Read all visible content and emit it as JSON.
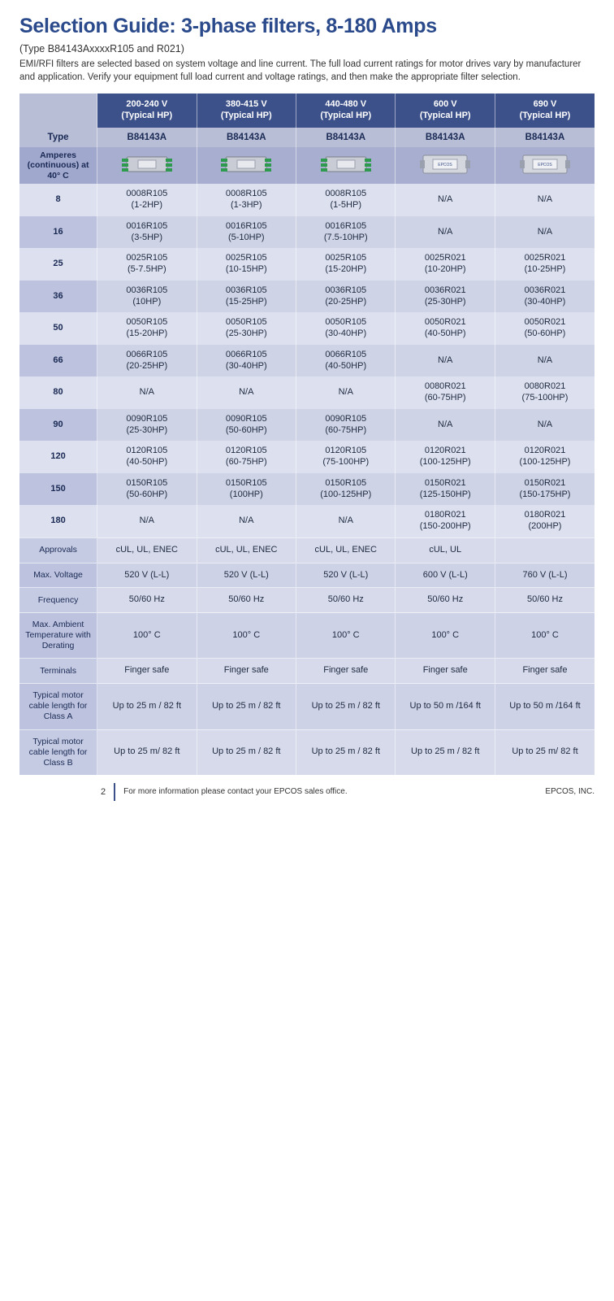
{
  "title": "Selection Guide: 3-phase filters, 8-180 Amps",
  "subtitle": "(Type B84143AxxxxR105 and R021)",
  "intro": "EMI/RFI filters are selected based on system voltage and line current.  The full load current ratings for motor drives vary by manufacturer and application. Verify your equipment full load current  and voltage ratings, and then make the appropriate filter selection.",
  "columns": [
    {
      "volt": "200-240 V",
      "hp": "(Typical HP)",
      "type": "B84143A",
      "icon": "green"
    },
    {
      "volt": "380-415 V",
      "hp": "(Typical HP)",
      "type": "B84143A",
      "icon": "green"
    },
    {
      "volt": "440-480 V",
      "hp": "(Typical HP)",
      "type": "B84143A",
      "icon": "green"
    },
    {
      "volt": "600 V",
      "hp": "(Typical HP)",
      "type": "B84143A",
      "icon": "grey"
    },
    {
      "volt": "690 V",
      "hp": "(Typical HP)",
      "type": "B84143A",
      "icon": "grey"
    }
  ],
  "row_header_type": "Type",
  "row_header_amps": "Amperes (continuous) at 40° C",
  "amp_rows": [
    {
      "a": "8",
      "c": [
        "0008R105\n(1-2HP)",
        "0008R105\n(1-3HP)",
        "0008R105\n(1-5HP)",
        "N/A",
        "N/A"
      ]
    },
    {
      "a": "16",
      "c": [
        "0016R105\n(3-5HP)",
        "0016R105\n(5-10HP)",
        "0016R105\n(7.5-10HP)",
        "N/A",
        "N/A"
      ]
    },
    {
      "a": "25",
      "c": [
        "0025R105\n(5-7.5HP)",
        "0025R105\n(10-15HP)",
        "0025R105\n(15-20HP)",
        "0025R021\n(10-20HP)",
        "0025R021\n(10-25HP)"
      ]
    },
    {
      "a": "36",
      "c": [
        "0036R105\n(10HP)",
        "0036R105\n(15-25HP)",
        "0036R105\n(20-25HP)",
        "0036R021\n(25-30HP)",
        "0036R021\n(30-40HP)"
      ]
    },
    {
      "a": "50",
      "c": [
        "0050R105\n(15-20HP)",
        "0050R105\n(25-30HP)",
        "0050R105\n(30-40HP)",
        "0050R021\n(40-50HP)",
        "0050R021\n(50-60HP)"
      ]
    },
    {
      "a": "66",
      "c": [
        "0066R105\n(20-25HP)",
        "0066R105\n(30-40HP)",
        "0066R105\n(40-50HP)",
        "N/A",
        "N/A"
      ]
    },
    {
      "a": "80",
      "c": [
        "N/A",
        "N/A",
        "N/A",
        "0080R021\n(60-75HP)",
        "0080R021\n(75-100HP)"
      ]
    },
    {
      "a": "90",
      "c": [
        "0090R105\n(25-30HP)",
        "0090R105\n(50-60HP)",
        "0090R105\n(60-75HP)",
        "N/A",
        "N/A"
      ]
    },
    {
      "a": "120",
      "c": [
        "0120R105\n(40-50HP)",
        "0120R105\n(60-75HP)",
        "0120R105\n(75-100HP)",
        "0120R021\n(100-125HP)",
        "0120R021\n(100-125HP)"
      ]
    },
    {
      "a": "150",
      "c": [
        "0150R105\n(50-60HP)",
        "0150R105\n(100HP)",
        "0150R105\n(100-125HP)",
        "0150R021\n(125-150HP)",
        "0150R021\n(150-175HP)"
      ]
    },
    {
      "a": "180",
      "c": [
        "N/A",
        "N/A",
        "N/A",
        "0180R021\n(150-200HP)",
        "0180R021\n(200HP)"
      ]
    }
  ],
  "spec_rows": [
    {
      "l": "Approvals",
      "c": [
        "cUL, UL, ENEC",
        "cUL, UL, ENEC",
        "cUL, UL, ENEC",
        "cUL, UL",
        ""
      ]
    },
    {
      "l": "Max. Voltage",
      "c": [
        "520 V (L-L)",
        "520 V (L-L)",
        "520 V (L-L)",
        "600 V (L-L)",
        "760 V (L-L)"
      ]
    },
    {
      "l": "Frequency",
      "c": [
        "50/60 Hz",
        "50/60 Hz",
        "50/60 Hz",
        "50/60 Hz",
        "50/60 Hz"
      ]
    },
    {
      "l": "Max. Ambient Temperature with Derating",
      "c": [
        "100° C",
        "100° C",
        "100° C",
        "100° C",
        "100° C"
      ]
    },
    {
      "l": "Terminals",
      "c": [
        "Finger safe",
        "Finger safe",
        "Finger safe",
        "Finger safe",
        "Finger safe"
      ]
    },
    {
      "l": "Typical motor cable length for Class A",
      "c": [
        "Up to 25 m / 82 ft",
        "Up to 25 m / 82 ft",
        "Up to 25 m / 82 ft",
        "Up to 50 m /164 ft",
        "Up to 50 m /164 ft"
      ]
    },
    {
      "l": "Typical motor cable length for Class B",
      "c": [
        "Up to 25 m/ 82 ft",
        "Up to 25 m / 82 ft",
        "Up to 25 m / 82 ft",
        "Up to 25 m / 82 ft",
        "Up to 25 m/ 82 ft"
      ]
    }
  ],
  "footer": {
    "page": "2",
    "contact": "For more information please contact your EPCOS sales office.",
    "brand": "EPCOS, INC."
  },
  "colors": {
    "header_bg": "#3c5089",
    "sub_bg": "#b8bed6",
    "row_a": "#dde0ee",
    "row_b": "#ced3e6",
    "title_color": "#2b4a8b"
  },
  "icon_svg": {
    "green": "<svg width='62' height='30' viewBox='0 0 62 30'><rect x='6' y='6' width='50' height='18' rx='2' fill='#c9ccd4' stroke='#7a7f8a'/><rect x='0' y='8' width='8' height='4' fill='#2e9a4e'/><rect x='0' y='14' width='8' height='4' fill='#2e9a4e'/><rect x='0' y='20' width='8' height='4' fill='#2e9a4e'/><rect x='54' y='8' width='8' height='4' fill='#2e9a4e'/><rect x='54' y='14' width='8' height='4' fill='#2e9a4e'/><rect x='54' y='20' width='8' height='4' fill='#2e9a4e'/><rect x='20' y='10' width='22' height='10' fill='#e8e9ee' stroke='#9aa0ad'/></svg>",
    "grey": "<svg width='62' height='30' viewBox='0 0 62 30'><rect x='4' y='4' width='54' height='22' rx='2' fill='#d4d7de' stroke='#8a8f99'/><rect x='0' y='10' width='6' height='10' fill='#9aa0ad'/><rect x='56' y='10' width='6' height='10' fill='#9aa0ad'/><rect x='16' y='9' width='30' height='12' fill='#f0f1f5' stroke='#9aa0ad'/><text x='31' y='17' font-size='5' text-anchor='middle' fill='#3c5089' font-family='Arial'>EPCOS</text></svg>"
  }
}
